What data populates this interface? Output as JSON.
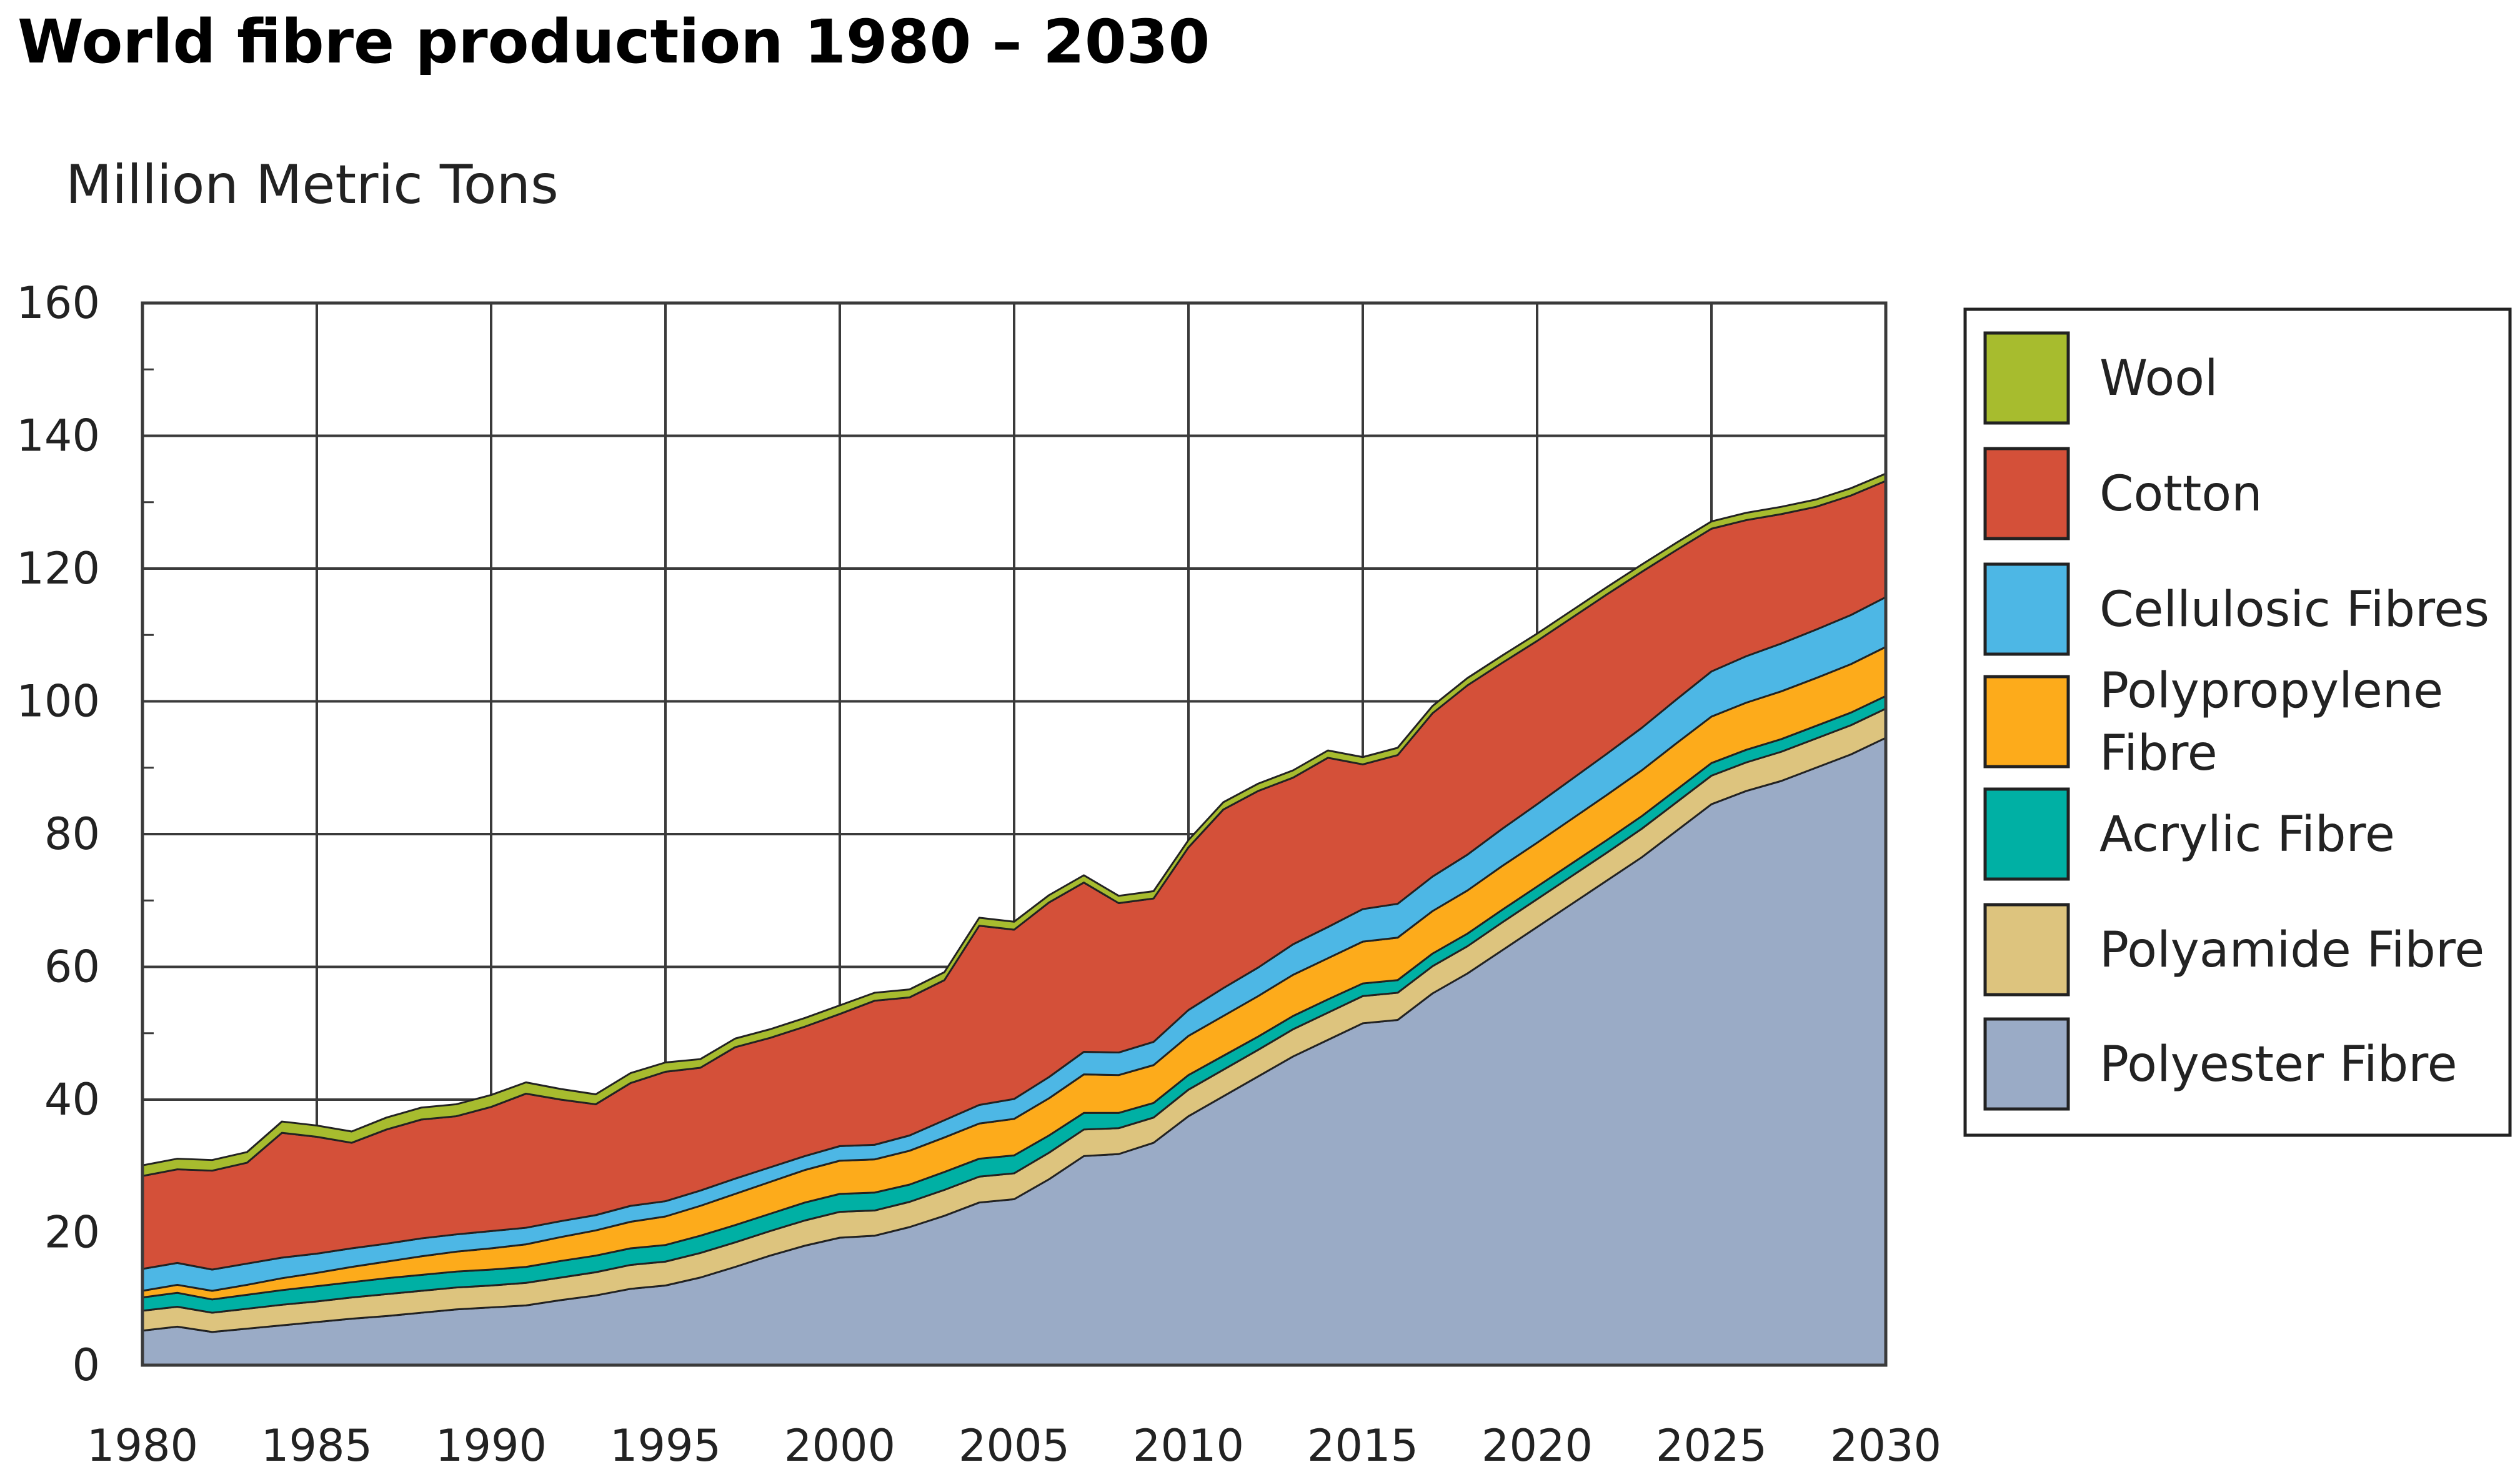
{
  "chart_data": {
    "type": "area",
    "stacked": true,
    "title": "World fibre production 1980 – 2030",
    "ylabel": "Million Metric Tons",
    "xlabel": "",
    "xlim": [
      1980,
      2030
    ],
    "ylim": [
      0,
      160
    ],
    "x_ticks": [
      1980,
      1985,
      1990,
      1995,
      2000,
      2005,
      2010,
      2015,
      2020,
      2025,
      2030
    ],
    "y_ticks": [
      0,
      20,
      40,
      60,
      80,
      100,
      120,
      140,
      160
    ],
    "x_tick_labels": [
      "1980",
      "1985",
      "1990",
      "1995",
      "2000",
      "2005",
      "2010",
      "2015",
      "2020",
      "2025",
      "2030"
    ],
    "y_tick_labels": [
      "0",
      "20",
      "40",
      "60",
      "80",
      "100",
      "120",
      "140",
      "160"
    ],
    "grid": true,
    "legend_position": "right",
    "x": [
      1980,
      1981,
      1982,
      1983,
      1984,
      1985,
      1986,
      1987,
      1988,
      1989,
      1990,
      1991,
      1992,
      1993,
      1994,
      1995,
      1996,
      1997,
      1998,
      1999,
      2000,
      2001,
      2002,
      2003,
      2004,
      2005,
      2006,
      2007,
      2008,
      2009,
      2010,
      2011,
      2012,
      2013,
      2014,
      2015,
      2016,
      2017,
      2018,
      2019,
      2020,
      2021,
      2022,
      2023,
      2024,
      2025,
      2026,
      2027,
      2028,
      2029,
      2030
    ],
    "series": [
      {
        "name": "Polyester Fibre",
        "color": "#9aabc6",
        "values": [
          5.2,
          5.8,
          5.0,
          5.5,
          6.0,
          6.5,
          7.0,
          7.4,
          7.9,
          8.4,
          8.7,
          9.0,
          9.8,
          10.5,
          11.5,
          12.0,
          13.2,
          14.8,
          16.5,
          18.0,
          19.2,
          19.5,
          20.8,
          22.5,
          24.5,
          25.0,
          28.0,
          31.5,
          31.8,
          33.5,
          37.5,
          40.5,
          43.5,
          46.5,
          49.0,
          51.5,
          52.0,
          56.0,
          59.0,
          62.5,
          66.0,
          69.5,
          73.0,
          76.5,
          80.5,
          84.5,
          86.5,
          88.0,
          90.0,
          92.0,
          94.5
        ]
      },
      {
        "name": "Polyamide Fibre",
        "color": "#ddc47e",
        "values": [
          3.0,
          3.0,
          2.9,
          3.0,
          3.1,
          3.1,
          3.2,
          3.3,
          3.3,
          3.3,
          3.3,
          3.4,
          3.4,
          3.5,
          3.6,
          3.6,
          3.7,
          3.7,
          3.7,
          3.8,
          3.9,
          3.8,
          3.8,
          3.9,
          3.9,
          3.9,
          4.0,
          4.0,
          3.9,
          3.8,
          4.0,
          4.0,
          4.0,
          4.1,
          4.1,
          4.1,
          4.1,
          4.1,
          4.1,
          4.2,
          4.2,
          4.2,
          4.2,
          4.3,
          4.3,
          4.3,
          4.3,
          4.4,
          4.4,
          4.4,
          4.4
        ]
      },
      {
        "name": "Acrylic Fibre",
        "color": "#00b0a4",
        "values": [
          2.0,
          2.1,
          2.0,
          2.1,
          2.2,
          2.3,
          2.3,
          2.4,
          2.4,
          2.4,
          2.4,
          2.4,
          2.5,
          2.5,
          2.5,
          2.5,
          2.6,
          2.6,
          2.6,
          2.7,
          2.7,
          2.7,
          2.6,
          2.7,
          2.7,
          2.7,
          2.6,
          2.5,
          2.3,
          2.2,
          2.2,
          2.1,
          2.0,
          2.0,
          2.0,
          1.9,
          1.9,
          1.9,
          1.9,
          1.9,
          1.9,
          1.9,
          1.9,
          1.9,
          1.9,
          1.9,
          1.9,
          1.9,
          1.9,
          1.9,
          1.9
        ]
      },
      {
        "name": "Polypropylene Fibre",
        "color": "#fdab1b",
        "values": [
          1.0,
          1.2,
          1.3,
          1.5,
          1.8,
          2.0,
          2.3,
          2.5,
          2.8,
          3.0,
          3.2,
          3.4,
          3.6,
          3.8,
          4.0,
          4.3,
          4.5,
          4.7,
          4.8,
          4.9,
          5.0,
          5.0,
          5.1,
          5.2,
          5.3,
          5.5,
          5.6,
          5.8,
          5.7,
          5.7,
          5.9,
          6.0,
          6.1,
          6.2,
          6.2,
          6.3,
          6.4,
          6.4,
          6.5,
          6.6,
          6.6,
          6.7,
          6.8,
          6.9,
          7.0,
          7.0,
          7.1,
          7.2,
          7.2,
          7.3,
          7.4
        ]
      },
      {
        "name": "Cellulosic Fibres",
        "color": "#4db7e5",
        "values": [
          3.3,
          3.3,
          3.2,
          3.2,
          3.1,
          2.9,
          2.8,
          2.7,
          2.7,
          2.6,
          2.6,
          2.5,
          2.4,
          2.3,
          2.4,
          2.3,
          2.3,
          2.3,
          2.2,
          2.1,
          2.2,
          2.2,
          2.3,
          2.6,
          2.8,
          3.0,
          3.2,
          3.4,
          3.4,
          3.5,
          3.9,
          4.2,
          4.3,
          4.6,
          4.7,
          4.9,
          5.1,
          5.2,
          5.4,
          5.6,
          5.8,
          6.0,
          6.2,
          6.4,
          6.6,
          6.8,
          7.0,
          7.2,
          7.3,
          7.4,
          7.5
        ]
      },
      {
        "name": "Cotton",
        "color": "#d45039",
        "values": [
          14.0,
          14.1,
          14.9,
          15.2,
          18.8,
          17.6,
          15.9,
          17.2,
          17.9,
          17.8,
          18.7,
          20.2,
          18.3,
          16.7,
          18.5,
          19.5,
          18.5,
          19.8,
          19.5,
          19.5,
          19.9,
          21.7,
          20.8,
          21.1,
          27.0,
          25.5,
          26.3,
          25.5,
          22.5,
          21.6,
          24.5,
          26.9,
          26.6,
          25.1,
          25.5,
          21.8,
          22.4,
          24.6,
          25.5,
          25.0,
          24.6,
          24.3,
          24.0,
          23.5,
          22.5,
          21.5,
          20.5,
          19.5,
          18.5,
          18.0,
          17.5
        ]
      },
      {
        "name": "Wool",
        "color": "#a7bc2e",
        "values": [
          1.6,
          1.6,
          1.6,
          1.6,
          1.7,
          1.7,
          1.7,
          1.8,
          1.8,
          1.8,
          1.8,
          1.7,
          1.6,
          1.5,
          1.5,
          1.4,
          1.3,
          1.3,
          1.3,
          1.3,
          1.3,
          1.2,
          1.2,
          1.2,
          1.2,
          1.2,
          1.1,
          1.1,
          1.1,
          1.1,
          1.1,
          1.1,
          1.1,
          1.1,
          1.1,
          1.1,
          1.1,
          1.1,
          1.1,
          1.1,
          1.1,
          1.1,
          1.1,
          1.1,
          1.1,
          1.1,
          1.1,
          1.1,
          1.1,
          1.1,
          1.1
        ]
      }
    ],
    "legend_order": [
      "Wool",
      "Cotton",
      "Cellulosic Fibres",
      "Polypropylene Fibre",
      "Acrylic Fibre",
      "Polyamide Fibre",
      "Polyester Fibre"
    ],
    "legend_lines": {
      "Wool": [
        "Wool"
      ],
      "Cotton": [
        "Cotton"
      ],
      "Cellulosic Fibres": [
        "Cellulosic Fibres"
      ],
      "Polypropylene Fibre": [
        "Polypropylene",
        "Fibre"
      ],
      "Acrylic Fibre": [
        "Acrylic Fibre"
      ],
      "Polyamide Fibre": [
        "Polyamide Fibre"
      ],
      "Polyester Fibre": [
        "Polyester Fibre"
      ]
    }
  }
}
